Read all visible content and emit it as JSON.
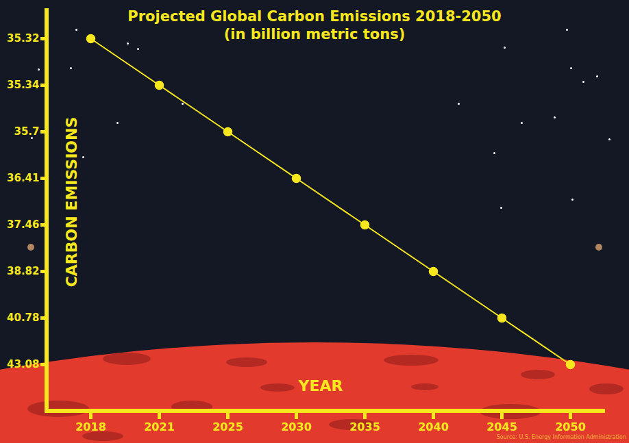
{
  "chart_data": {
    "type": "line",
    "title": "Projected Global Carbon Emissions 2018-2050",
    "subtitle": "(in billion metric tons)",
    "x_label": "YEAR",
    "y_label": "CARBON EMISSIONS",
    "source": "Source: U.S. Energy Information Administration",
    "categories": [
      "2018",
      "2021",
      "2025",
      "2030",
      "2035",
      "2040",
      "2045",
      "2050"
    ],
    "values": [
      35.32,
      35.34,
      35.7,
      36.41,
      37.46,
      38.82,
      40.78,
      43.08
    ],
    "color": "#f7e81e",
    "marker": "circle",
    "ylim": [
      35.32,
      43.08
    ],
    "yticks": [
      35.32,
      35.34,
      35.7,
      36.41,
      37.46,
      38.82,
      40.78,
      43.08
    ]
  }
}
